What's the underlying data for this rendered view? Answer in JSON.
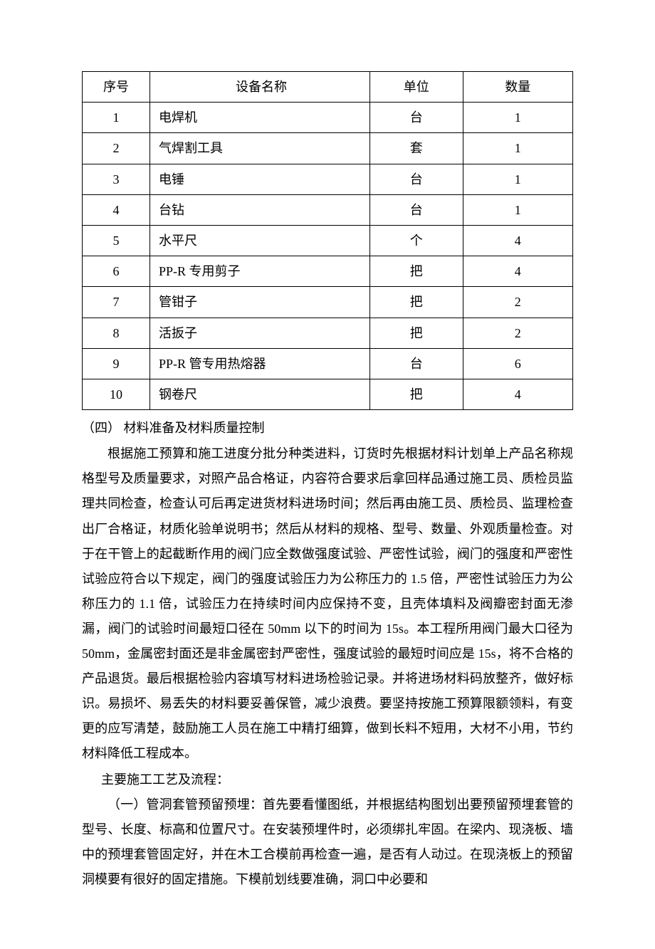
{
  "table": {
    "columns": [
      "序号",
      "设备名称",
      "单位",
      "数量"
    ],
    "rows": [
      [
        "1",
        "电焊机",
        "台",
        "1"
      ],
      [
        "2",
        "气焊割工具",
        "套",
        "1"
      ],
      [
        "3",
        "电锤",
        "台",
        "1"
      ],
      [
        "4",
        "台钻",
        "台",
        "1"
      ],
      [
        "5",
        "水平尺",
        "个",
        "4"
      ],
      [
        "6",
        "PP-R 专用剪子",
        "把",
        "4"
      ],
      [
        "7",
        "管钳子",
        "把",
        "2"
      ],
      [
        "8",
        "活扳子",
        "把",
        "2"
      ],
      [
        "9",
        "PP-R 管专用热熔器",
        "台",
        "6"
      ],
      [
        "10",
        "钢卷尺",
        "把",
        "4"
      ]
    ],
    "border_color": "#000000",
    "font_size": 18
  },
  "sections": {
    "heading_4": "（四）  材料准备及材料质量控制",
    "paragraph_1": "根据施工预算和施工进度分批分种类进料，订货时先根据材料计划单上产品名称规格型号及质量要求，对照产品合格证，内容符合要求后拿回样品通过施工员、质检员监理共同检查，检查认可后再定进货材料进场时间；然后再由施工员、质检员、监理检查出厂合格证，材质化验单说明书；然后从材料的规格、型号、数量、外观质量检查。对于在干管上的起截断作用的阀门应全数做强度试验、严密性试验，阀门的强度和严密性试验应符合以下规定，阀门的强度试验压力为公称压力的 1.5 倍，严密性试验压力为公称压力的 1.1 倍，试验压力在持续时间内应保持不变，且壳体填料及阀瓣密封面无渗漏，阀门的试验时间最短口径在 50mm 以下的时间为 15s。本工程所用阀门最大口径为 50mm，金属密封面还是非金属密封严密性，强度试验的最短时间应是 15s，将不合格的产品退货。最后根据检验内容填写材料进场检验记录。并将进场材料码放整齐，做好标识。易损坏、易丢失的材料要妥善保管，减少浪费。要坚持按施工预算限额领料，有变更的应写清楚，鼓励施工人员在施工中精打细算，做到长料不短用，大材不小用，节约材料降低工程成本。",
    "sub_heading": "主要施工工艺及流程：",
    "paragraph_2": "（一）管洞套管预留预埋：首先要看懂图纸，并根据结构图划出要预留预埋套管的型号、长度、标高和位置尺寸。在安装预埋件时，必须绑扎牢固。在梁内、现浇板、墙中的预埋套管固定好，并在木工合模前再检查一遍，是否有人动过。在现浇板上的预留洞模要有很好的固定措施。下模前划线要准确，洞口中必要和"
  },
  "styles": {
    "background_color": "#ffffff",
    "text_color": "#000000",
    "font_family": "SimSun",
    "body_font_size": 18,
    "line_height": 1.95
  }
}
